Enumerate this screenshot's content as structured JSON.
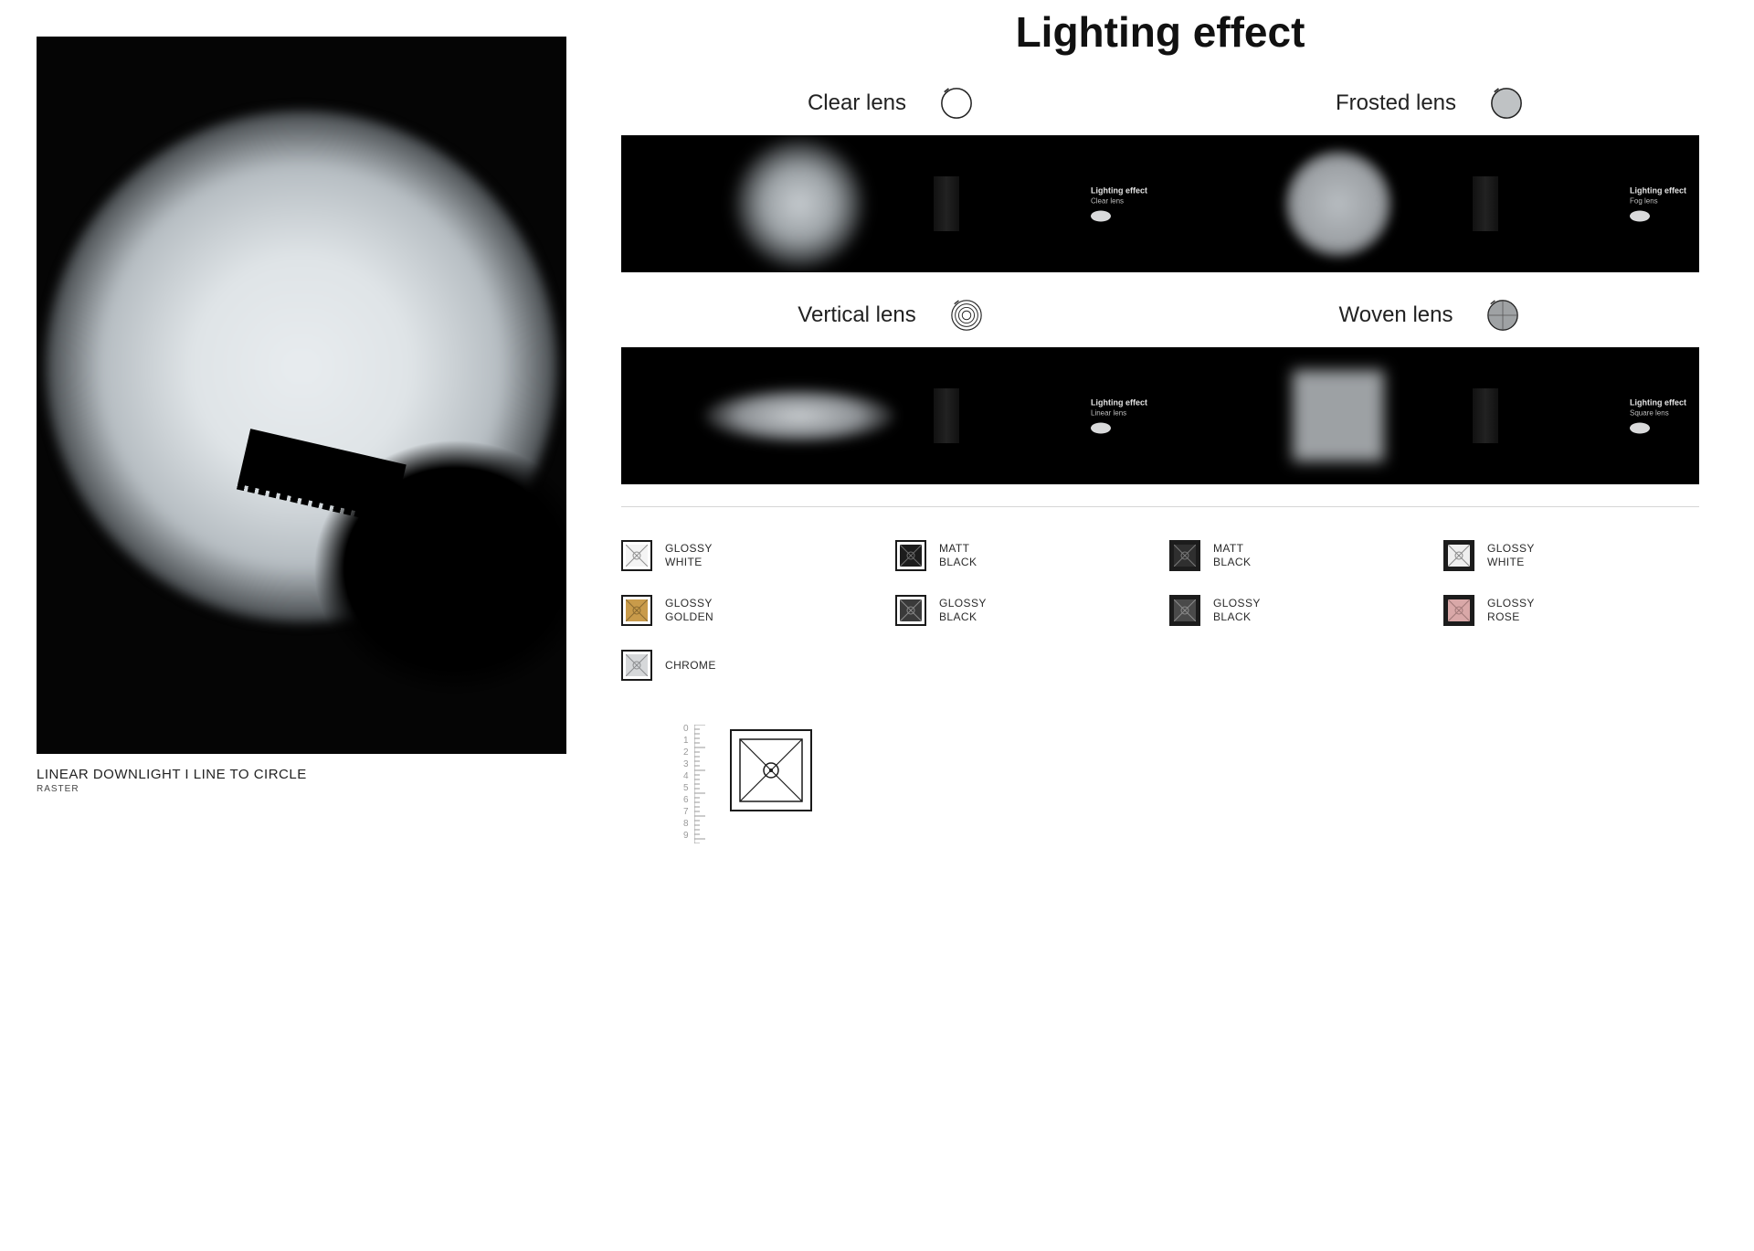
{
  "hero": {
    "caption_main": "LINEAR DOWNLIGHT  I  LINE TO CIRCLE",
    "caption_sub": "RASTER",
    "bg_color": "#050505",
    "glow_inner": "#e8ecef",
    "glow_outer": "#050505"
  },
  "title": "Lighting effect",
  "lenses": [
    {
      "label": "Clear lens",
      "icon": "circle-outline",
      "sub": "Clear lens",
      "shape": "soft-circle"
    },
    {
      "label": "Frosted lens",
      "icon": "circle-filled",
      "sub": "Fog lens",
      "shape": "hard-circle"
    },
    {
      "label": "Vertical lens",
      "icon": "concentric",
      "sub": "Linear lens",
      "shape": "ellipse"
    },
    {
      "label": "Woven lens",
      "icon": "circle-cross",
      "sub": "Square lens",
      "shape": "square"
    }
  ],
  "mini_title": "Lighting effect",
  "swatches": [
    {
      "outer": "#ffffff",
      "outer_stroke": "#1a1a1a",
      "inner": "#f4f4f4",
      "x_stroke": "#8f8f8f",
      "line1": "GLOSSY",
      "line2": "WHITE"
    },
    {
      "outer": "#ffffff",
      "outer_stroke": "#1a1a1a",
      "inner": "#1c1c1c",
      "x_stroke": "#6c6c6c",
      "line1": "MATT",
      "line2": "BLACK"
    },
    {
      "outer": "#1c1c1c",
      "outer_stroke": "#1c1c1c",
      "inner": "#2f2f2f",
      "x_stroke": "#7a7a7a",
      "line1": "MATT",
      "line2": "BLACK"
    },
    {
      "outer": "#1c1c1c",
      "outer_stroke": "#1c1c1c",
      "inner": "#efefef",
      "x_stroke": "#8a8a8a",
      "line1": "GLOSSY",
      "line2": "WHITE"
    },
    {
      "outer": "#ffffff",
      "outer_stroke": "#1a1a1a",
      "inner": "#c99b4a",
      "x_stroke": "#8a6a30",
      "line1": "GLOSSY",
      "line2": "GOLDEN"
    },
    {
      "outer": "#ffffff",
      "outer_stroke": "#1a1a1a",
      "inner": "#3a3a3a",
      "x_stroke": "#898989",
      "line1": "GLOSSY",
      "line2": "BLACK"
    },
    {
      "outer": "#1c1c1c",
      "outer_stroke": "#1c1c1c",
      "inner": "#4a4a4a",
      "x_stroke": "#8b8b8b",
      "line1": "GLOSSY",
      "line2": "BLACK"
    },
    {
      "outer": "#1c1c1c",
      "outer_stroke": "#1c1c1c",
      "inner": "#d9a8a8",
      "x_stroke": "#a07878",
      "line1": "GLOSSY",
      "line2": "ROSE"
    },
    {
      "outer": "#ffffff",
      "outer_stroke": "#1a1a1a",
      "inner": "#d6d8da",
      "x_stroke": "#8b8d8f",
      "line1": "CHROME",
      "line2": ""
    }
  ],
  "ruler_digits": [
    "0",
    "1",
    "2",
    "3",
    "4",
    "5",
    "6",
    "7",
    "8",
    "9"
  ],
  "colors": {
    "page_bg": "#ffffff",
    "text": "#1a1a1a",
    "sep": "#d6d6d6",
    "ruler": "#9a9a9a"
  }
}
